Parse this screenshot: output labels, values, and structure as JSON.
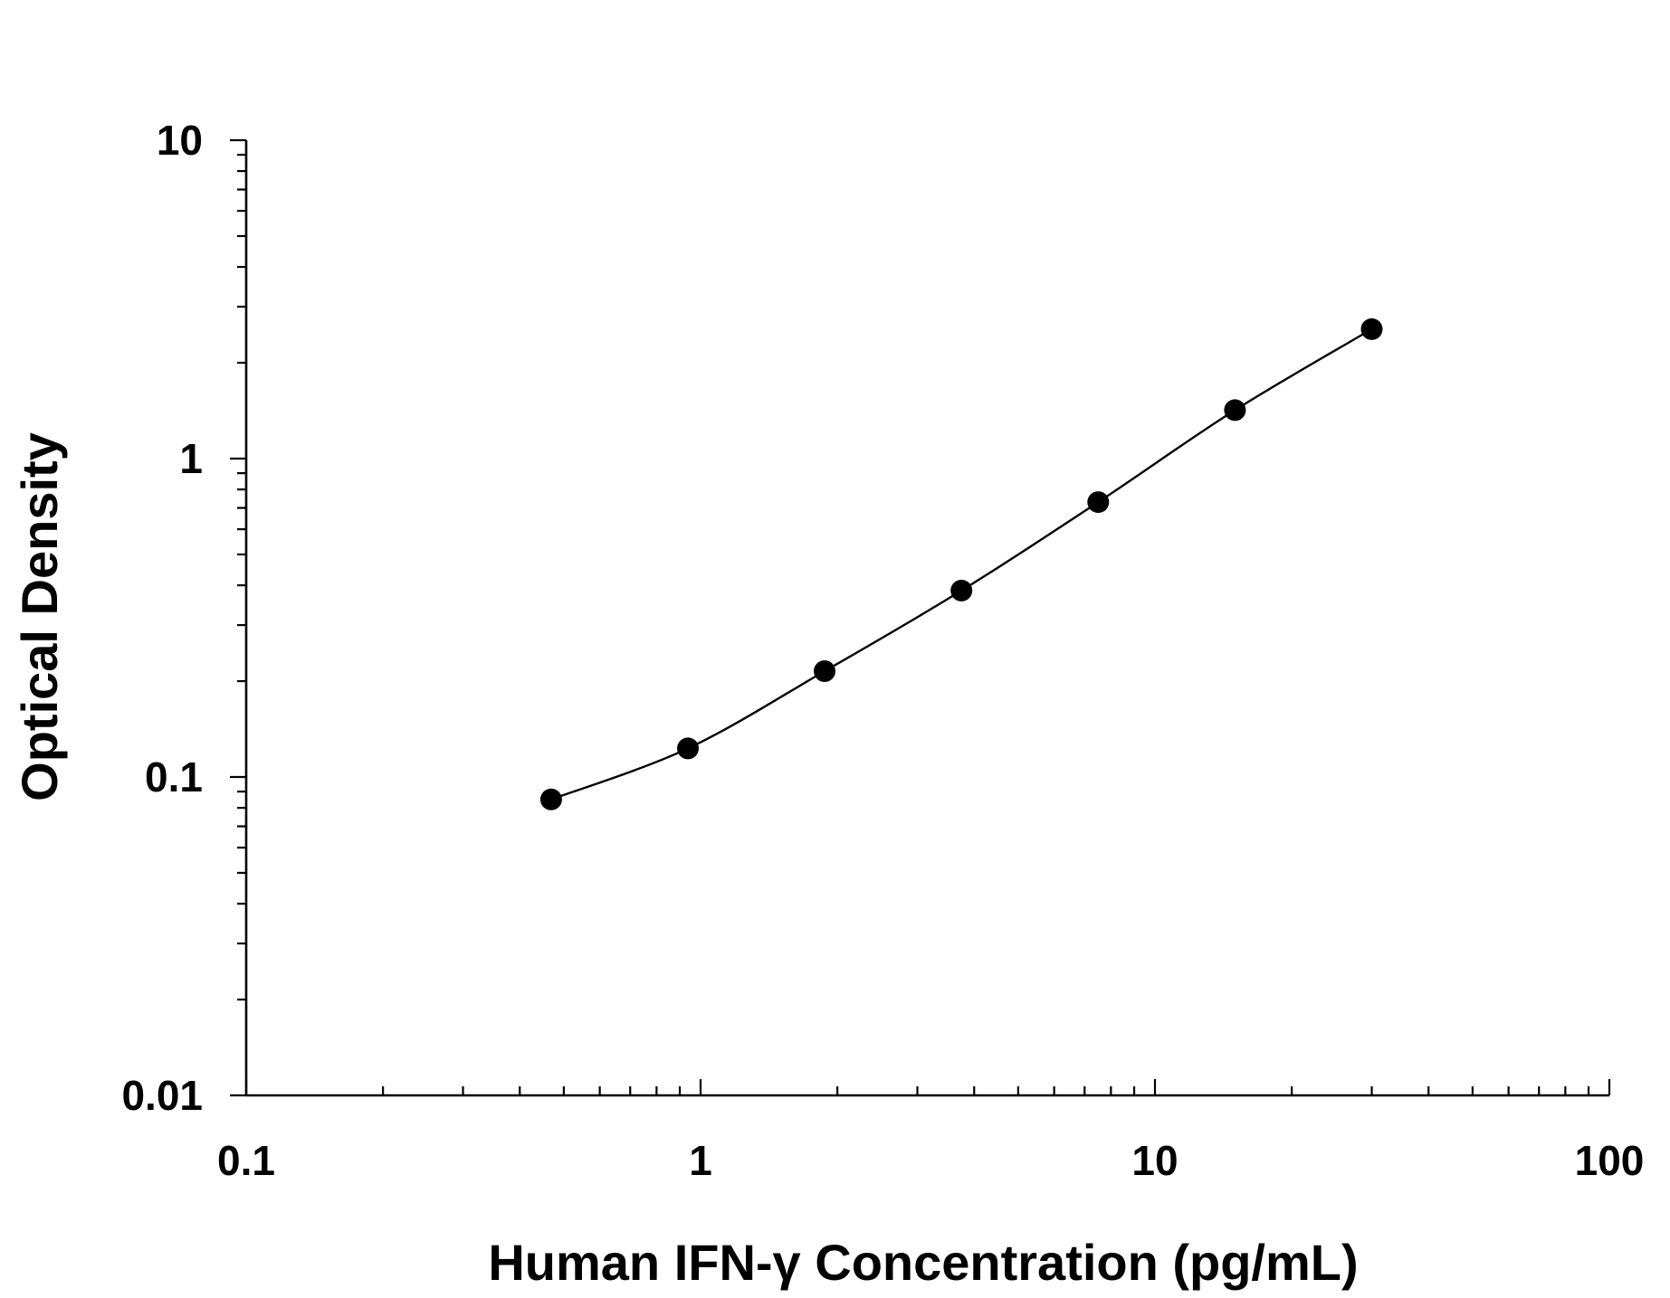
{
  "chart_data": {
    "type": "scatter",
    "xlabel": "Human IFN-γ Concentration (pg/mL)",
    "ylabel": "Optical Density",
    "xscale": "log",
    "yscale": "log",
    "xlim": [
      0.1,
      100
    ],
    "ylim": [
      0.01,
      10
    ],
    "x_tick_labels": [
      "0.1",
      "1",
      "10",
      "100"
    ],
    "y_tick_labels": [
      "0.01",
      "0.1",
      "1",
      "10"
    ],
    "grid": false,
    "legend": "none",
    "marker_color": "#000000",
    "fit_line": "smooth curve through points",
    "series": [
      {
        "x": [
          0.469,
          0.938,
          1.875,
          3.75,
          7.5,
          15,
          30
        ],
        "y": [
          0.085,
          0.123,
          0.215,
          0.385,
          0.73,
          1.42,
          2.55
        ]
      }
    ]
  }
}
